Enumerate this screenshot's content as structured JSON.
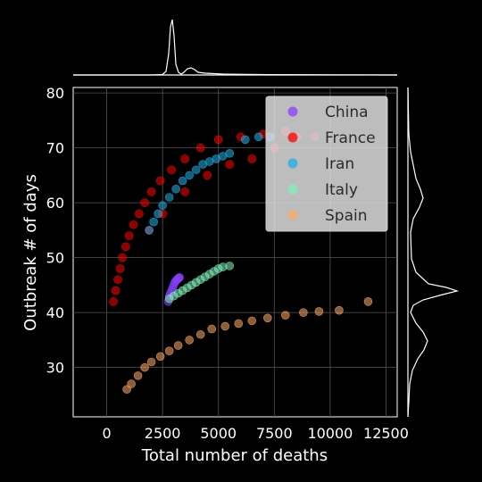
{
  "chart_data": {
    "type": "scatter",
    "title": "",
    "xlabel": "Total number of deaths",
    "ylabel": "Outbreak # of days",
    "xlim": [
      -1500,
      13000
    ],
    "ylim": [
      21,
      81
    ],
    "x_ticks": [
      0,
      2500,
      5000,
      7500,
      10000,
      12500
    ],
    "x_tick_labels": [
      "0",
      "2500",
      "5000",
      "7500",
      "10000",
      "12500"
    ],
    "y_ticks": [
      30,
      40,
      50,
      60,
      70,
      80
    ],
    "y_tick_labels": [
      "30",
      "40",
      "50",
      "60",
      "70",
      "80"
    ],
    "grid": true,
    "legend_position": "top-right",
    "marginal_plots": {
      "top": "x-distribution",
      "right": "y-distribution"
    },
    "series": [
      {
        "name": "China",
        "color": "#8a3ffc",
        "points": [
          [
            2750,
            42
          ],
          [
            2800,
            43
          ],
          [
            2850,
            43.5
          ],
          [
            2900,
            44
          ],
          [
            2950,
            44.5
          ],
          [
            3000,
            45
          ],
          [
            3050,
            45.5
          ],
          [
            3100,
            45.8
          ],
          [
            3150,
            46
          ],
          [
            3200,
            46.2
          ],
          [
            3230,
            46.3
          ],
          [
            3260,
            46.4
          ]
        ]
      },
      {
        "name": "France",
        "color": "#ff0000",
        "points": [
          [
            300,
            42
          ],
          [
            400,
            44
          ],
          [
            500,
            46
          ],
          [
            600,
            48
          ],
          [
            700,
            50
          ],
          [
            850,
            52
          ],
          [
            1000,
            54
          ],
          [
            1200,
            56
          ],
          [
            1450,
            58
          ],
          [
            1700,
            60
          ],
          [
            2000,
            62
          ],
          [
            2400,
            64
          ],
          [
            2900,
            66
          ],
          [
            3500,
            68
          ],
          [
            4200,
            70
          ],
          [
            5000,
            71.5
          ],
          [
            6000,
            72
          ],
          [
            7000,
            72.5
          ],
          [
            8000,
            73
          ],
          [
            9300,
            72
          ],
          [
            1900,
            55
          ],
          [
            2500,
            58
          ],
          [
            3500,
            62
          ],
          [
            4500,
            65
          ],
          [
            5500,
            67
          ],
          [
            6500,
            68
          ],
          [
            7500,
            70
          ],
          [
            8500,
            72
          ]
        ]
      },
      {
        "name": "Iran",
        "color": "#1fb0e8",
        "points": [
          [
            1900,
            55
          ],
          [
            2100,
            56.5
          ],
          [
            2300,
            58
          ],
          [
            2500,
            59.5
          ],
          [
            2800,
            61
          ],
          [
            3100,
            62.5
          ],
          [
            3400,
            64
          ],
          [
            3700,
            65
          ],
          [
            4000,
            66
          ],
          [
            4300,
            67
          ],
          [
            4600,
            67.5
          ],
          [
            4900,
            68
          ],
          [
            5200,
            68.5
          ],
          [
            5500,
            69
          ],
          [
            6200,
            71.5
          ],
          [
            6800,
            72
          ],
          [
            7300,
            72
          ]
        ]
      },
      {
        "name": "Italy",
        "color": "#7ff0b8",
        "points": [
          [
            2800,
            42.5
          ],
          [
            3000,
            43
          ],
          [
            3200,
            43.5
          ],
          [
            3400,
            44
          ],
          [
            3600,
            44.5
          ],
          [
            3800,
            45
          ],
          [
            4000,
            45.5
          ],
          [
            4200,
            46
          ],
          [
            4400,
            46.5
          ],
          [
            4600,
            47
          ],
          [
            4800,
            47.5
          ],
          [
            5000,
            48
          ],
          [
            5200,
            48.3
          ],
          [
            5500,
            48.5
          ]
        ]
      },
      {
        "name": "Spain",
        "color": "#ffaa66",
        "points": [
          [
            900,
            26
          ],
          [
            1100,
            27
          ],
          [
            1400,
            28.5
          ],
          [
            1700,
            30
          ],
          [
            2000,
            31
          ],
          [
            2400,
            32
          ],
          [
            2800,
            33
          ],
          [
            3200,
            34
          ],
          [
            3700,
            35
          ],
          [
            4200,
            36
          ],
          [
            4700,
            37
          ],
          [
            5300,
            37.5
          ],
          [
            5900,
            38
          ],
          [
            6500,
            38.5
          ],
          [
            7200,
            39
          ],
          [
            8000,
            39.5
          ],
          [
            8800,
            40
          ],
          [
            9500,
            40.2
          ],
          [
            10400,
            40.4
          ],
          [
            11700,
            42
          ]
        ]
      }
    ]
  }
}
